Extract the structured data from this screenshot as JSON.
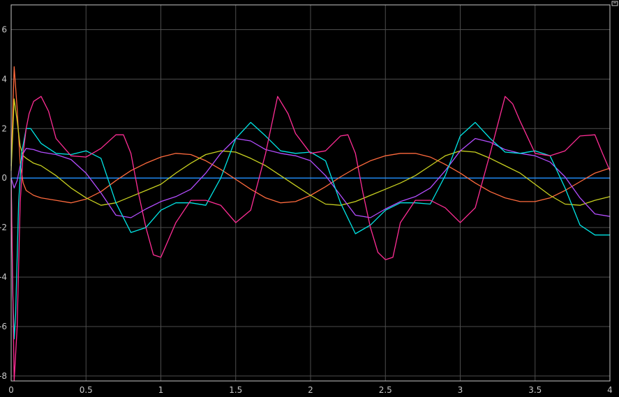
{
  "chart_data": {
    "type": "line",
    "title": "",
    "xlabel": "",
    "ylabel": "",
    "xlim": [
      0,
      4
    ],
    "ylim": [
      -8.2,
      7
    ],
    "grid": true,
    "background": "#000000",
    "axes_background": "#000000",
    "grid_color": "#4d4d4d",
    "axis_color": "#c8c8c8",
    "x_ticks": [
      0,
      0.5,
      1,
      1.5,
      2,
      2.5,
      3,
      3.5,
      4
    ],
    "x_tick_labels": [
      "0",
      "0.5",
      "1",
      "1.5",
      "2",
      "2.5",
      "3",
      "3.5",
      "4"
    ],
    "y_ticks": [
      -8,
      -6,
      -4,
      -2,
      0,
      2,
      4,
      6
    ],
    "y_tick_labels": [
      "-8",
      "-6",
      "-4",
      "-2",
      "0",
      "2",
      "4",
      "6"
    ],
    "series": [
      {
        "name": "blue",
        "color": "#1e90ff",
        "x": [
          0,
          4
        ],
        "y": [
          0,
          0
        ]
      },
      {
        "name": "orange",
        "color": "#ff6a3d",
        "x": [
          0,
          0.02,
          0.04,
          0.06,
          0.08,
          0.1,
          0.15,
          0.2,
          0.3,
          0.4,
          0.5,
          0.6,
          0.7,
          0.8,
          0.9,
          1.0,
          1.1,
          1.2,
          1.3,
          1.4,
          1.5,
          1.6,
          1.7,
          1.8,
          1.9,
          2.0,
          2.1,
          2.2,
          2.3,
          2.4,
          2.5,
          2.6,
          2.7,
          2.8,
          2.9,
          3.0,
          3.1,
          3.2,
          3.3,
          3.4,
          3.5,
          3.6,
          3.7,
          3.8,
          3.9,
          4.0
        ],
        "y": [
          0.5,
          4.5,
          2.8,
          0.6,
          -0.2,
          -0.5,
          -0.7,
          -0.8,
          -0.9,
          -1.0,
          -0.85,
          -0.55,
          -0.1,
          0.3,
          0.6,
          0.85,
          1.0,
          0.95,
          0.7,
          0.35,
          -0.05,
          -0.45,
          -0.8,
          -1.0,
          -0.95,
          -0.7,
          -0.35,
          0.05,
          0.4,
          0.7,
          0.9,
          1.0,
          1.0,
          0.85,
          0.55,
          0.2,
          -0.2,
          -0.55,
          -0.8,
          -0.95,
          -0.95,
          -0.8,
          -0.5,
          -0.15,
          0.2,
          0.4
        ]
      },
      {
        "name": "yellow-green",
        "color": "#c8d020",
        "x": [
          0,
          0.02,
          0.04,
          0.06,
          0.08,
          0.1,
          0.15,
          0.2,
          0.3,
          0.4,
          0.5,
          0.6,
          0.7,
          0.8,
          0.9,
          1.0,
          1.1,
          1.2,
          1.3,
          1.4,
          1.5,
          1.6,
          1.7,
          1.8,
          1.9,
          2.0,
          2.1,
          2.2,
          2.3,
          2.4,
          2.5,
          2.6,
          2.7,
          2.8,
          2.9,
          3.0,
          3.1,
          3.2,
          3.3,
          3.4,
          3.5,
          3.6,
          3.7,
          3.8,
          3.9,
          4.0
        ],
        "y": [
          0.3,
          3.2,
          2.3,
          1.3,
          0.9,
          0.8,
          0.6,
          0.5,
          0.1,
          -0.4,
          -0.8,
          -1.1,
          -1.0,
          -0.75,
          -0.5,
          -0.25,
          0.2,
          0.6,
          0.95,
          1.1,
          1.05,
          0.8,
          0.5,
          0.1,
          -0.3,
          -0.7,
          -1.05,
          -1.1,
          -0.95,
          -0.7,
          -0.45,
          -0.2,
          0.1,
          0.5,
          0.9,
          1.1,
          1.05,
          0.8,
          0.5,
          0.2,
          -0.25,
          -0.7,
          -1.05,
          -1.1,
          -0.9,
          -0.75
        ]
      },
      {
        "name": "purple",
        "color": "#b44dff",
        "x": [
          0,
          0.02,
          0.04,
          0.06,
          0.08,
          0.1,
          0.15,
          0.2,
          0.3,
          0.4,
          0.5,
          0.6,
          0.7,
          0.8,
          0.9,
          1.0,
          1.1,
          1.2,
          1.3,
          1.4,
          1.5,
          1.6,
          1.7,
          1.8,
          1.9,
          2.0,
          2.1,
          2.2,
          2.3,
          2.4,
          2.5,
          2.6,
          2.7,
          2.8,
          2.9,
          3.0,
          3.1,
          3.2,
          3.3,
          3.4,
          3.5,
          3.6,
          3.7,
          3.8,
          3.9,
          4.0
        ],
        "y": [
          0,
          -0.4,
          -0.1,
          0.5,
          1.0,
          1.2,
          1.15,
          1.05,
          0.95,
          0.75,
          0.2,
          -0.6,
          -1.5,
          -1.6,
          -1.25,
          -0.95,
          -0.75,
          -0.45,
          0.2,
          1.0,
          1.6,
          1.5,
          1.15,
          1.0,
          0.9,
          0.7,
          0.1,
          -0.7,
          -1.5,
          -1.6,
          -1.25,
          -0.95,
          -0.75,
          -0.4,
          0.3,
          1.1,
          1.6,
          1.45,
          1.15,
          1.0,
          0.9,
          0.65,
          0.05,
          -0.8,
          -1.45,
          -1.55
        ]
      },
      {
        "name": "cyan",
        "color": "#00e5e5",
        "x": [
          0,
          0.01,
          0.02,
          0.03,
          0.05,
          0.07,
          0.1,
          0.13,
          0.2,
          0.3,
          0.4,
          0.5,
          0.6,
          0.7,
          0.8,
          0.9,
          1.0,
          1.1,
          1.2,
          1.3,
          1.4,
          1.5,
          1.6,
          1.7,
          1.8,
          1.9,
          2.0,
          2.1,
          2.2,
          2.3,
          2.4,
          2.5,
          2.6,
          2.7,
          2.8,
          2.9,
          3.0,
          3.1,
          3.2,
          3.3,
          3.4,
          3.5,
          3.6,
          3.7,
          3.8,
          3.9,
          4.0
        ],
        "y": [
          0,
          -4.5,
          -6.5,
          -5.5,
          -1.0,
          1.0,
          2.0,
          2.0,
          1.4,
          1.0,
          0.95,
          1.1,
          0.8,
          -1.0,
          -2.2,
          -2.0,
          -1.3,
          -1.0,
          -1.0,
          -1.1,
          0.0,
          1.6,
          2.25,
          1.7,
          1.1,
          1.0,
          1.05,
          0.7,
          -1.0,
          -2.25,
          -1.9,
          -1.3,
          -1.0,
          -1.0,
          -1.05,
          0.1,
          1.7,
          2.25,
          1.6,
          1.05,
          1.0,
          1.1,
          0.9,
          -0.4,
          -1.9,
          -2.3,
          -2.3
        ]
      },
      {
        "name": "magenta",
        "color": "#ff2d95",
        "x": [
          0,
          0.01,
          0.02,
          0.04,
          0.06,
          0.08,
          0.1,
          0.12,
          0.15,
          0.2,
          0.25,
          0.3,
          0.4,
          0.5,
          0.6,
          0.7,
          0.75,
          0.8,
          0.85,
          0.9,
          0.95,
          1.0,
          1.1,
          1.2,
          1.3,
          1.4,
          1.5,
          1.6,
          1.7,
          1.78,
          1.85,
          1.9,
          2.0,
          2.1,
          2.2,
          2.25,
          2.3,
          2.35,
          2.4,
          2.45,
          2.5,
          2.55,
          2.6,
          2.7,
          2.8,
          2.9,
          3.0,
          3.1,
          3.2,
          3.3,
          3.35,
          3.4,
          3.5,
          3.6,
          3.7,
          3.8,
          3.9,
          3.95,
          4.0
        ],
        "y": [
          0,
          -4.0,
          -8.2,
          -6.0,
          -1.0,
          1.0,
          2.0,
          2.6,
          3.1,
          3.3,
          2.7,
          1.6,
          0.9,
          0.85,
          1.2,
          1.75,
          1.75,
          1.0,
          -0.6,
          -2.0,
          -3.1,
          -3.2,
          -1.8,
          -0.9,
          -0.9,
          -1.1,
          -1.8,
          -1.3,
          1.0,
          3.3,
          2.6,
          1.8,
          1.0,
          1.1,
          1.7,
          1.75,
          1.0,
          -0.6,
          -2.0,
          -3.0,
          -3.3,
          -3.2,
          -1.8,
          -0.9,
          -0.9,
          -1.2,
          -1.8,
          -1.2,
          1.0,
          3.3,
          3.0,
          2.3,
          1.0,
          0.9,
          1.1,
          1.7,
          1.75,
          1.0,
          0.3
        ]
      }
    ]
  }
}
